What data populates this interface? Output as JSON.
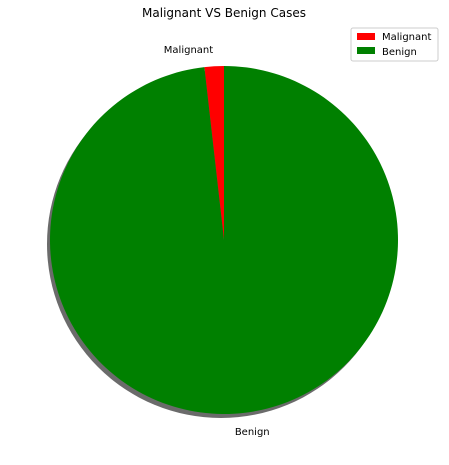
{
  "chart_data": {
    "type": "pie",
    "title": "Malignant VS Benign Cases",
    "labels": [
      "Malignant",
      "Benign"
    ],
    "values": [
      1.8,
      98.2
    ],
    "colors": [
      "#ff0000",
      "#008000"
    ],
    "shadow": true,
    "legend": {
      "position": "top-right",
      "entries": [
        "Malignant",
        "Benign"
      ]
    }
  }
}
